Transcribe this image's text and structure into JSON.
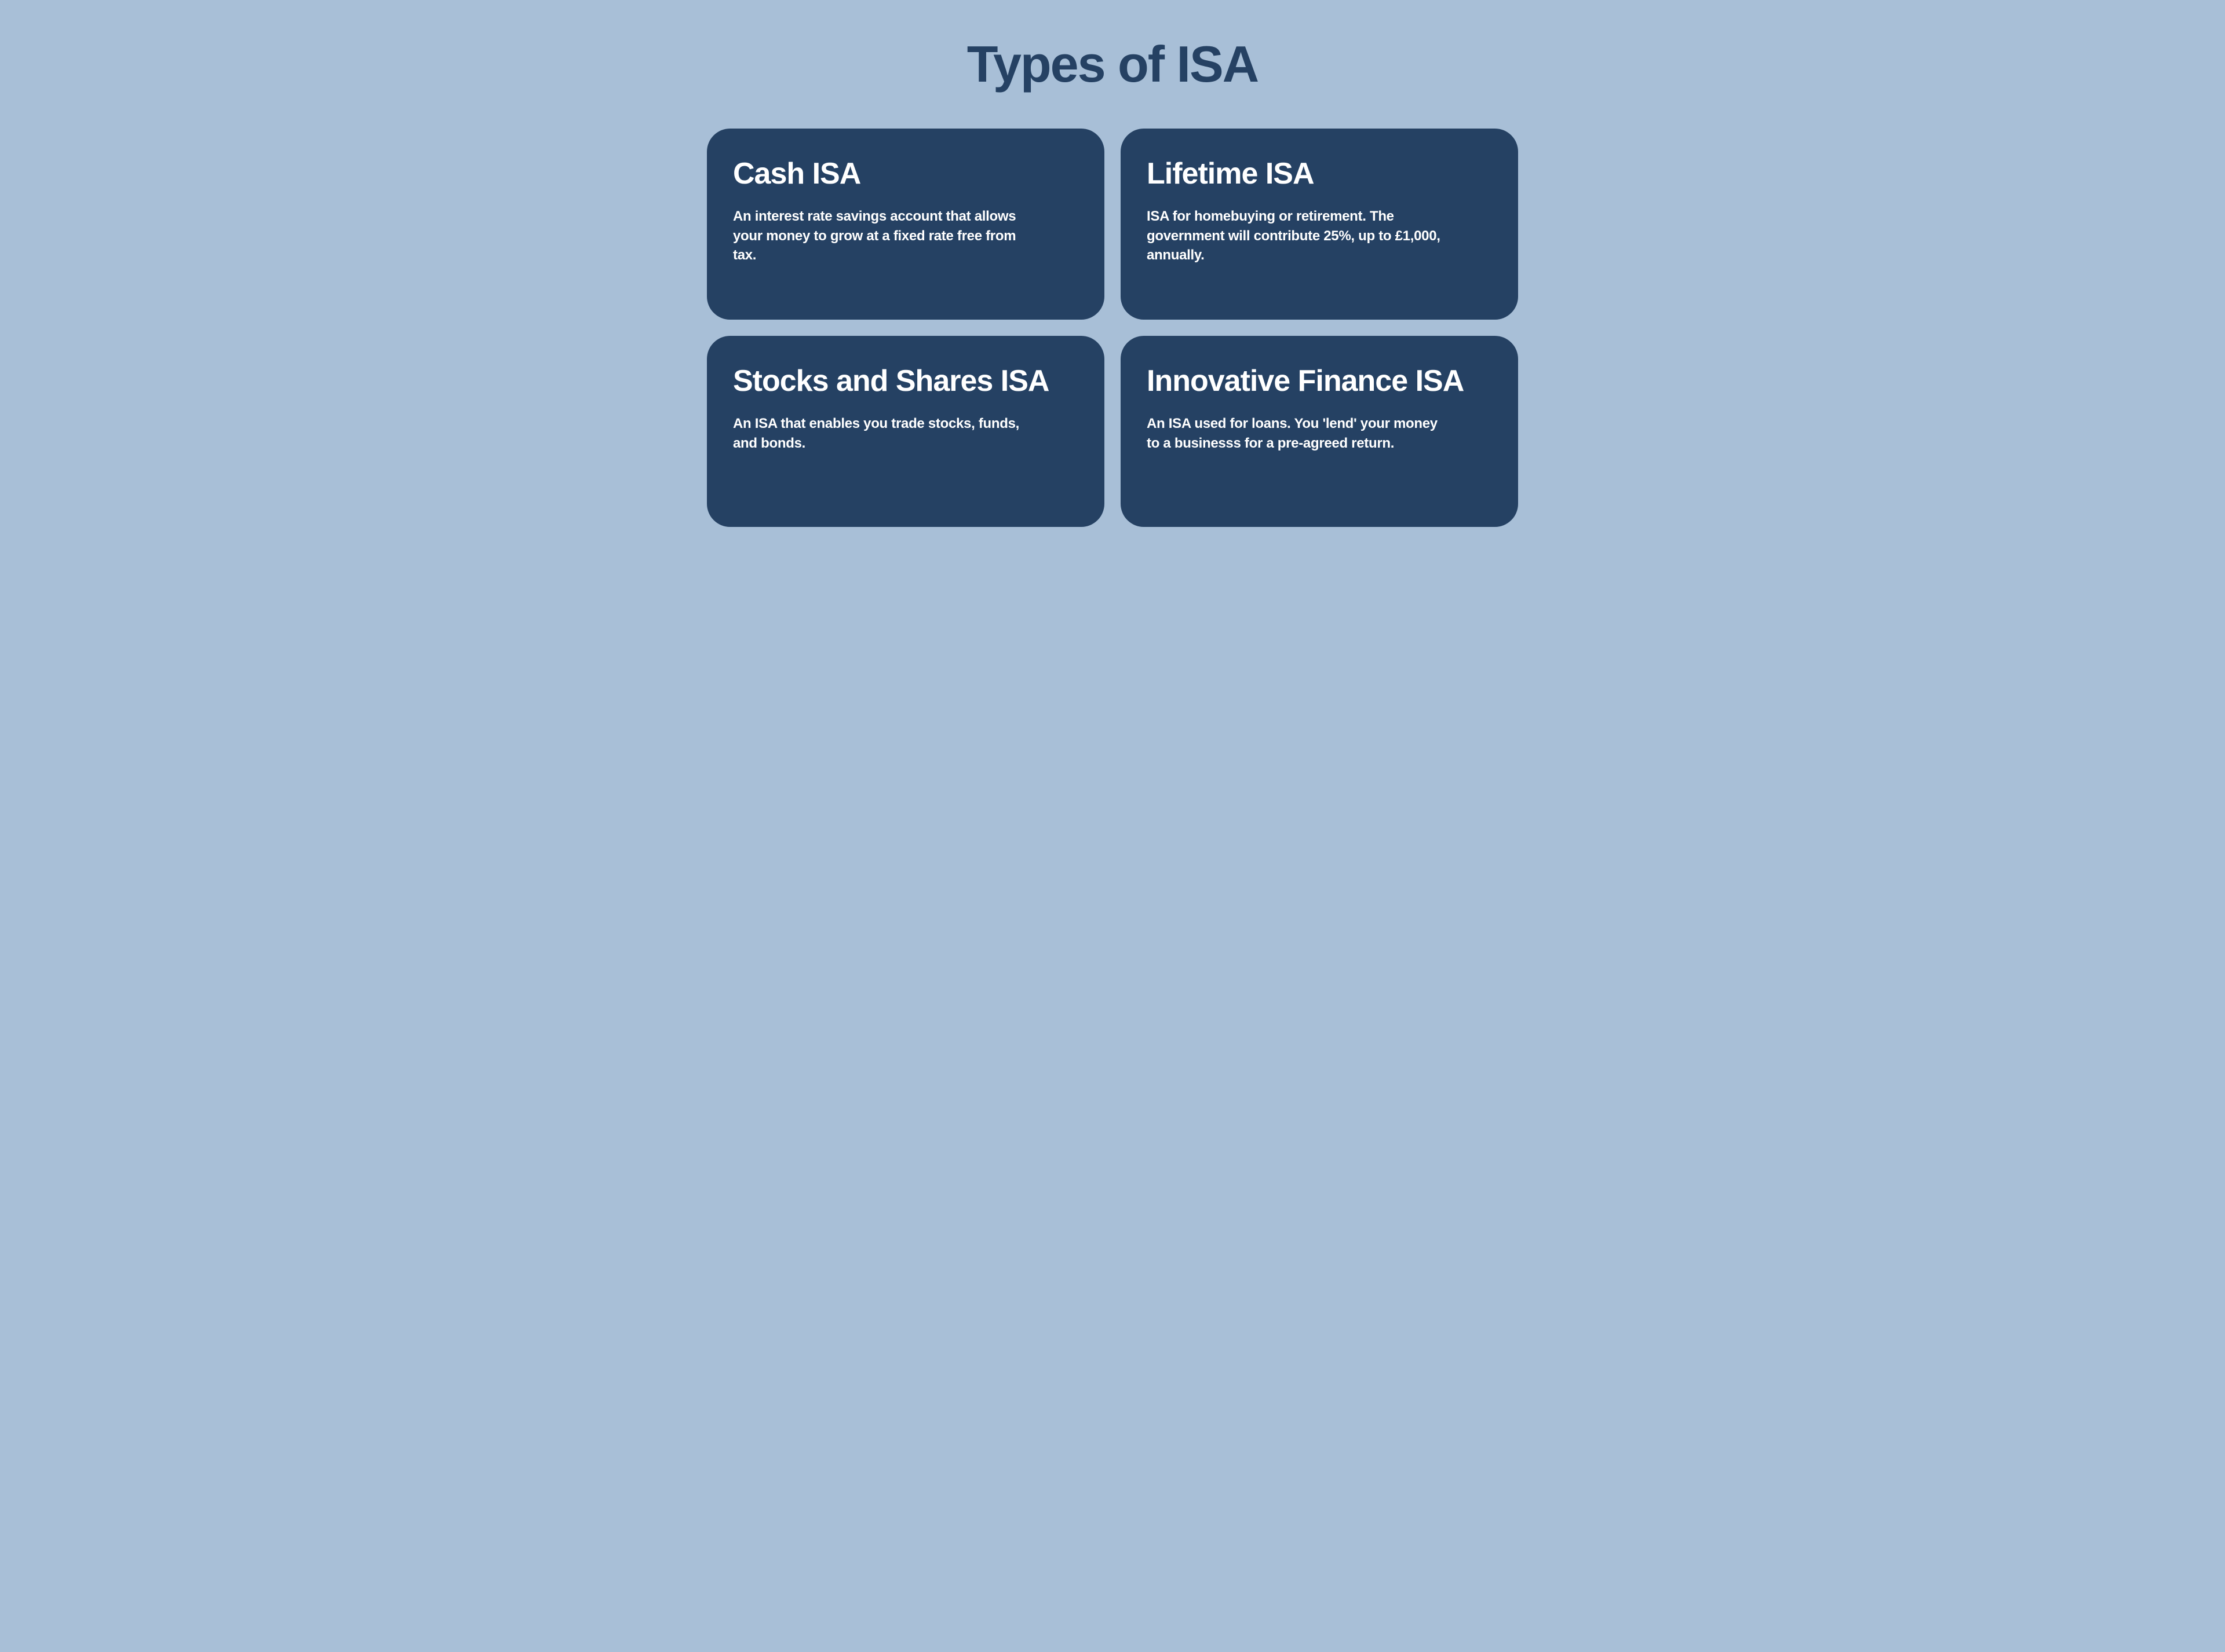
{
  "title": "Types of ISA",
  "colors": {
    "background": "#a8bfd7",
    "card_background": "#254163",
    "title_text": "#254163",
    "card_text": "#ffffff"
  },
  "layout": {
    "type": "grid",
    "columns": 2,
    "rows": 2,
    "card_border_radius": 40,
    "gap": 28
  },
  "typography": {
    "title_fontsize": 88,
    "card_title_fontsize": 52,
    "card_description_fontsize": 24
  },
  "cards": [
    {
      "title": "Cash ISA",
      "description": "An interest rate savings account that allows your money to grow at a fixed rate free from tax."
    },
    {
      "title": "Lifetime ISA",
      "description": "ISA for homebuying or retirement. The government will contribute 25%, up to £1,000, annually."
    },
    {
      "title": "Stocks and Shares ISA",
      "description": "An ISA that enables you trade stocks, funds, and bonds."
    },
    {
      "title": "Innovative Finance ISA",
      "description": "An ISA used for loans. You 'lend' your money to a businesss for a pre-agreed return."
    }
  ]
}
